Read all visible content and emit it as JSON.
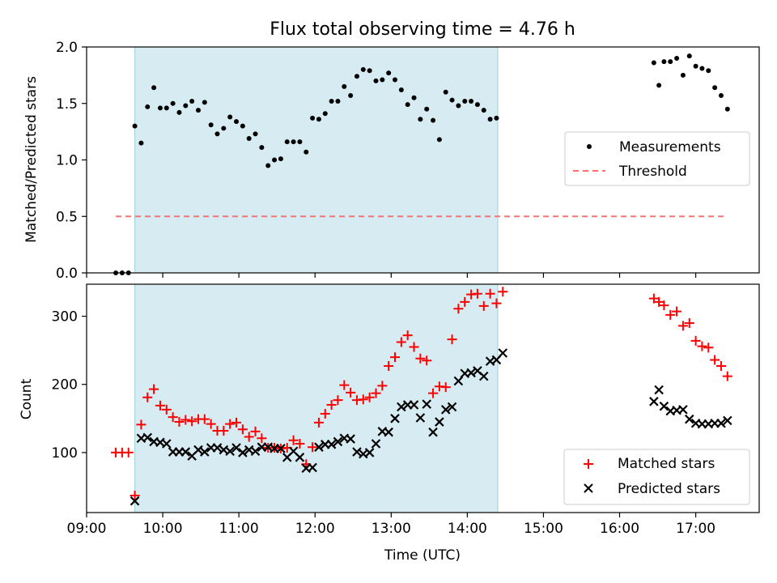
{
  "chart_data": [
    {
      "type": "scatter",
      "title": "Flux total observing time = 4.76 h",
      "xlabel": "",
      "ylabel": "Matched/Predicted stars",
      "xlim": [
        "09:00",
        "17:50"
      ],
      "ylim": [
        0,
        2.0
      ],
      "yticks": [
        0.0,
        0.5,
        1.0,
        1.5,
        2.0
      ],
      "ytick_labels": [
        "0.0",
        "0.5",
        "1.0",
        "1.5",
        "2.0"
      ],
      "grid": false,
      "legend_position": "center-right",
      "shaded_span": [
        "09:38",
        "14:24"
      ],
      "threshold": {
        "name": "Threshold",
        "value": 0.5,
        "x_range": [
          "09:23",
          "17:25"
        ]
      },
      "series": [
        {
          "name": "Measurements",
          "marker": "dot",
          "points": [
            [
              "09:23",
              0
            ],
            [
              "09:28",
              0
            ],
            [
              "09:33",
              0
            ],
            [
              "09:38",
              1.3
            ],
            [
              "09:43",
              1.15
            ],
            [
              "09:48",
              1.47
            ],
            [
              "09:53",
              1.64
            ],
            [
              "09:58",
              1.46
            ],
            [
              "10:03",
              1.46
            ],
            [
              "10:08",
              1.5
            ],
            [
              "10:13",
              1.42
            ],
            [
              "10:18",
              1.48
            ],
            [
              "10:23",
              1.52
            ],
            [
              "10:28",
              1.44
            ],
            [
              "10:33",
              1.51
            ],
            [
              "10:38",
              1.31
            ],
            [
              "10:43",
              1.23
            ],
            [
              "10:48",
              1.28
            ],
            [
              "10:53",
              1.38
            ],
            [
              "10:58",
              1.34
            ],
            [
              "11:03",
              1.3
            ],
            [
              "11:08",
              1.19
            ],
            [
              "11:13",
              1.23
            ],
            [
              "11:18",
              1.11
            ],
            [
              "11:23",
              0.95
            ],
            [
              "11:28",
              1.0
            ],
            [
              "11:33",
              1.01
            ],
            [
              "11:38",
              1.16
            ],
            [
              "11:43",
              1.16
            ],
            [
              "11:48",
              1.16
            ],
            [
              "11:53",
              1.07
            ],
            [
              "11:58",
              1.37
            ],
            [
              "12:03",
              1.36
            ],
            [
              "12:08",
              1.41
            ],
            [
              "12:13",
              1.52
            ],
            [
              "12:18",
              1.52
            ],
            [
              "12:23",
              1.65
            ],
            [
              "12:28",
              1.57
            ],
            [
              "12:33",
              1.74
            ],
            [
              "12:38",
              1.8
            ],
            [
              "12:43",
              1.79
            ],
            [
              "12:48",
              1.7
            ],
            [
              "12:53",
              1.71
            ],
            [
              "12:58",
              1.77
            ],
            [
              "13:03",
              1.71
            ],
            [
              "13:08",
              1.62
            ],
            [
              "13:13",
              1.49
            ],
            [
              "13:18",
              1.55
            ],
            [
              "13:23",
              1.36
            ],
            [
              "13:28",
              1.45
            ],
            [
              "13:33",
              1.35
            ],
            [
              "13:38",
              1.18
            ],
            [
              "13:43",
              1.6
            ],
            [
              "13:48",
              1.53
            ],
            [
              "13:53",
              1.48
            ],
            [
              "13:58",
              1.52
            ],
            [
              "14:03",
              1.52
            ],
            [
              "14:08",
              1.49
            ],
            [
              "14:13",
              1.44
            ],
            [
              "14:18",
              1.36
            ],
            [
              "14:23",
              1.37
            ],
            [
              "16:27",
              1.86
            ],
            [
              "16:31",
              1.66
            ],
            [
              "16:35",
              1.87
            ],
            [
              "16:40",
              1.87
            ],
            [
              "16:45",
              1.9
            ],
            [
              "16:50",
              1.75
            ],
            [
              "16:55",
              1.92
            ],
            [
              "17:00",
              1.83
            ],
            [
              "17:05",
              1.81
            ],
            [
              "17:10",
              1.79
            ],
            [
              "17:15",
              1.64
            ],
            [
              "17:20",
              1.57
            ],
            [
              "17:25",
              1.45
            ]
          ]
        }
      ]
    },
    {
      "type": "scatter",
      "title": "",
      "xlabel": "Time (UTC)",
      "ylabel": "Count",
      "xlim": [
        "09:00",
        "17:50"
      ],
      "xticks": [
        "09:00",
        "10:00",
        "11:00",
        "12:00",
        "13:00",
        "14:00",
        "15:00",
        "16:00",
        "17:00"
      ],
      "ylim": [
        12,
        347
      ],
      "yticks": [
        100,
        200,
        300
      ],
      "grid": false,
      "legend_position": "lower-right",
      "shaded_span": [
        "09:38",
        "14:24"
      ],
      "series": [
        {
          "name": "Matched stars",
          "marker": "plus",
          "color": "#ff0000",
          "points": [
            [
              "09:23",
              100
            ],
            [
              "09:28",
              100
            ],
            [
              "09:33",
              100
            ],
            [
              "09:38",
              37
            ],
            [
              "09:43",
              141
            ],
            [
              "09:48",
              181
            ],
            [
              "09:53",
              193
            ],
            [
              "09:58",
              169
            ],
            [
              "10:03",
              163
            ],
            [
              "10:08",
              152
            ],
            [
              "10:13",
              145
            ],
            [
              "10:18",
              148
            ],
            [
              "10:23",
              146
            ],
            [
              "10:28",
              149
            ],
            [
              "10:33",
              149
            ],
            [
              "10:38",
              142
            ],
            [
              "10:43",
              132
            ],
            [
              "10:48",
              132
            ],
            [
              "10:53",
              142
            ],
            [
              "10:58",
              144
            ],
            [
              "11:03",
              134
            ],
            [
              "11:08",
              123
            ],
            [
              "11:13",
              131
            ],
            [
              "11:18",
              121
            ],
            [
              "11:23",
              107
            ],
            [
              "11:28",
              107
            ],
            [
              "11:33",
              106
            ],
            [
              "11:38",
              107
            ],
            [
              "11:43",
              118
            ],
            [
              "11:48",
              113
            ],
            [
              "11:53",
              83
            ],
            [
              "11:58",
              108
            ],
            [
              "12:03",
              144
            ],
            [
              "12:08",
              157
            ],
            [
              "12:13",
              170
            ],
            [
              "12:18",
              177
            ],
            [
              "12:23",
              199
            ],
            [
              "12:28",
              188
            ],
            [
              "12:33",
              177
            ],
            [
              "12:38",
              178
            ],
            [
              "12:43",
              181
            ],
            [
              "12:48",
              187
            ],
            [
              "12:53",
              198
            ],
            [
              "12:58",
              227
            ],
            [
              "13:03",
              240
            ],
            [
              "13:08",
              262
            ],
            [
              "13:13",
              272
            ],
            [
              "13:18",
              255
            ],
            [
              "13:23",
              238
            ],
            [
              "13:28",
              235
            ],
            [
              "13:33",
              187
            ],
            [
              "13:38",
              197
            ],
            [
              "13:43",
              196
            ],
            [
              "13:48",
              266
            ],
            [
              "13:53",
              311
            ],
            [
              "13:58",
              321
            ],
            [
              "14:03",
              332
            ],
            [
              "14:08",
              333
            ],
            [
              "14:13",
              315
            ],
            [
              "14:18",
              333
            ],
            [
              "14:23",
              319
            ],
            [
              "14:28",
              336
            ],
            [
              "16:27",
              326
            ],
            [
              "16:31",
              321
            ],
            [
              "16:35",
              316
            ],
            [
              "16:40",
              302
            ],
            [
              "16:45",
              307
            ],
            [
              "16:50",
              286
            ],
            [
              "16:55",
              290
            ],
            [
              "17:00",
              264
            ],
            [
              "17:05",
              256
            ],
            [
              "17:10",
              254
            ],
            [
              "17:15",
              236
            ],
            [
              "17:20",
              227
            ],
            [
              "17:25",
              212
            ]
          ]
        },
        {
          "name": "Predicted stars",
          "marker": "x",
          "color": "#000000",
          "points": [
            [
              "09:38",
              29
            ],
            [
              "09:43",
              121
            ],
            [
              "09:48",
              122
            ],
            [
              "09:53",
              116
            ],
            [
              "09:58",
              115
            ],
            [
              "10:03",
              113
            ],
            [
              "10:08",
              101
            ],
            [
              "10:13",
              101
            ],
            [
              "10:18",
              101
            ],
            [
              "10:23",
              95
            ],
            [
              "10:28",
              104
            ],
            [
              "10:33",
              101
            ],
            [
              "10:38",
              107
            ],
            [
              "10:43",
              107
            ],
            [
              "10:48",
              104
            ],
            [
              "10:53",
              102
            ],
            [
              "10:58",
              107
            ],
            [
              "11:03",
              100
            ],
            [
              "11:08",
              104
            ],
            [
              "11:13",
              102
            ],
            [
              "11:18",
              108
            ],
            [
              "11:23",
              108
            ],
            [
              "11:28",
              106
            ],
            [
              "11:33",
              106
            ],
            [
              "11:38",
              93
            ],
            [
              "11:43",
              102
            ],
            [
              "11:48",
              93
            ],
            [
              "11:53",
              77
            ],
            [
              "11:58",
              78
            ],
            [
              "12:03",
              108
            ],
            [
              "12:08",
              112
            ],
            [
              "12:13",
              112
            ],
            [
              "12:18",
              116
            ],
            [
              "12:23",
              121
            ],
            [
              "12:28",
              120
            ],
            [
              "12:33",
              101
            ],
            [
              "12:38",
              98
            ],
            [
              "12:43",
              100
            ],
            [
              "12:48",
              113
            ],
            [
              "12:53",
              131
            ],
            [
              "12:58",
              130
            ],
            [
              "13:03",
              150
            ],
            [
              "13:08",
              167
            ],
            [
              "13:13",
              170
            ],
            [
              "13:18",
              170
            ],
            [
              "13:23",
              151
            ],
            [
              "13:28",
              171
            ],
            [
              "13:33",
              130
            ],
            [
              "13:38",
              145
            ],
            [
              "13:43",
              163
            ],
            [
              "13:48",
              167
            ],
            [
              "13:53",
              205
            ],
            [
              "13:58",
              216
            ],
            [
              "14:03",
              217
            ],
            [
              "14:08",
              220
            ],
            [
              "14:13",
              212
            ],
            [
              "14:18",
              234
            ],
            [
              "14:23",
              236
            ],
            [
              "14:28",
              246
            ],
            [
              "16:27",
              175
            ],
            [
              "16:31",
              192
            ],
            [
              "16:35",
              168
            ],
            [
              "16:40",
              161
            ],
            [
              "16:45",
              162
            ],
            [
              "16:50",
              163
            ],
            [
              "16:55",
              149
            ],
            [
              "17:00",
              143
            ],
            [
              "17:05",
              142
            ],
            [
              "17:10",
              142
            ],
            [
              "17:15",
              143
            ],
            [
              "17:20",
              143
            ],
            [
              "17:25",
              147
            ]
          ]
        }
      ]
    }
  ]
}
